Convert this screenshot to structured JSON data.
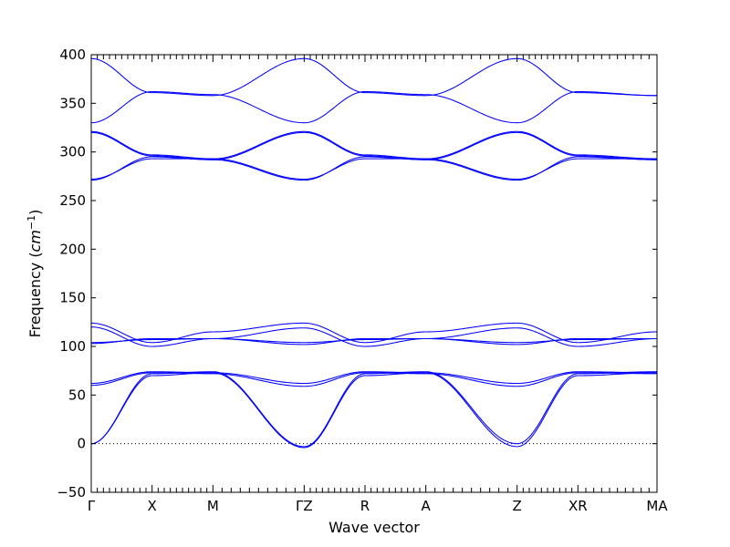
{
  "chart_data": {
    "type": "line",
    "title": "",
    "xlabel": "Wave vector",
    "ylabel": "Frequency (cm⁻¹)",
    "ylabel_parts": {
      "text": "Frequency (",
      "unit": "cm",
      "exp": "−1",
      "close": ")"
    },
    "ylim": [
      -50,
      400
    ],
    "yticks": [
      -50,
      0,
      50,
      100,
      150,
      200,
      250,
      300,
      350,
      400
    ],
    "zero_line": true,
    "grid": false,
    "line_color": "#0000ff",
    "high_symmetry_points": [
      {
        "label": "Γ",
        "x": 0
      },
      {
        "label": "X",
        "x": 1
      },
      {
        "label": "M",
        "x": 2
      },
      {
        "label": "ΓZ",
        "x": 3.5
      },
      {
        "label": "R",
        "x": 4.5
      },
      {
        "label": "A",
        "x": 5.5
      },
      {
        "label": "Z",
        "x": 7
      },
      {
        "label": "XR",
        "x": 8
      },
      {
        "label": "MA",
        "x": 9.3
      }
    ],
    "xlim": [
      0,
      9.3
    ],
    "segments": [
      {
        "x0": 0,
        "x1": 1,
        "bands": [
          [
            0,
            72
          ],
          [
            0,
            70
          ],
          [
            62,
            74
          ],
          [
            60,
            73
          ],
          [
            104,
            107
          ],
          [
            103,
            108
          ],
          [
            120,
            100
          ],
          [
            124,
            104
          ],
          [
            272,
            293
          ],
          [
            271,
            295
          ],
          [
            321,
            297
          ],
          [
            320,
            296
          ],
          [
            330,
            362
          ],
          [
            396,
            361
          ]
        ]
      },
      {
        "x0": 1,
        "x1": 2,
        "bands": [
          [
            72,
            74
          ],
          [
            70,
            73
          ],
          [
            74,
            73
          ],
          [
            73,
            72
          ],
          [
            107,
            108
          ],
          [
            108,
            108
          ],
          [
            100,
            108
          ],
          [
            104,
            115
          ],
          [
            293,
            293
          ],
          [
            295,
            292
          ],
          [
            297,
            293
          ],
          [
            296,
            292
          ],
          [
            362,
            359
          ],
          [
            361,
            358
          ]
        ]
      },
      {
        "x0": 2,
        "x1": 3.5,
        "bands": [
          [
            74,
            -3
          ],
          [
            73,
            -4
          ],
          [
            73,
            62
          ],
          [
            72,
            59
          ],
          [
            108,
            104
          ],
          [
            108,
            102
          ],
          [
            108,
            119
          ],
          [
            115,
            124
          ],
          [
            293,
            272
          ],
          [
            292,
            271
          ],
          [
            293,
            321
          ],
          [
            292,
            320
          ],
          [
            359,
            330
          ],
          [
            358,
            396
          ]
        ]
      },
      {
        "x0": 3.5,
        "x1": 4.5,
        "bands": [
          [
            -3,
            72
          ],
          [
            -4,
            70
          ],
          [
            62,
            74
          ],
          [
            59,
            73
          ],
          [
            104,
            107
          ],
          [
            102,
            108
          ],
          [
            119,
            100
          ],
          [
            124,
            104
          ],
          [
            272,
            293
          ],
          [
            271,
            295
          ],
          [
            321,
            297
          ],
          [
            320,
            296
          ],
          [
            330,
            362
          ],
          [
            396,
            361
          ]
        ]
      },
      {
        "x0": 4.5,
        "x1": 5.5,
        "bands": [
          [
            72,
            74
          ],
          [
            70,
            73
          ],
          [
            74,
            73
          ],
          [
            73,
            72
          ],
          [
            107,
            108
          ],
          [
            108,
            108
          ],
          [
            100,
            108
          ],
          [
            104,
            115
          ],
          [
            293,
            293
          ],
          [
            295,
            292
          ],
          [
            297,
            293
          ],
          [
            296,
            292
          ],
          [
            362,
            359
          ],
          [
            361,
            358
          ]
        ]
      },
      {
        "x0": 5.5,
        "x1": 7,
        "bands": [
          [
            74,
            0
          ],
          [
            73,
            -3
          ],
          [
            73,
            62
          ],
          [
            72,
            59
          ],
          [
            108,
            104
          ],
          [
            108,
            102
          ],
          [
            108,
            119
          ],
          [
            115,
            124
          ],
          [
            293,
            272
          ],
          [
            292,
            271
          ],
          [
            293,
            321
          ],
          [
            292,
            320
          ],
          [
            359,
            330
          ],
          [
            358,
            396
          ]
        ]
      },
      {
        "x0": 7,
        "x1": 8,
        "bands": [
          [
            0,
            72
          ],
          [
            -3,
            70
          ],
          [
            62,
            74
          ],
          [
            59,
            73
          ],
          [
            104,
            107
          ],
          [
            102,
            108
          ],
          [
            119,
            100
          ],
          [
            124,
            104
          ],
          [
            272,
            293
          ],
          [
            271,
            295
          ],
          [
            321,
            297
          ],
          [
            320,
            296
          ],
          [
            330,
            362
          ],
          [
            396,
            361
          ]
        ]
      },
      {
        "x0": 8,
        "x1": 9.3,
        "bands": [
          [
            72,
            74
          ],
          [
            70,
            73
          ],
          [
            74,
            73
          ],
          [
            73,
            72
          ],
          [
            107,
            108
          ],
          [
            108,
            108
          ],
          [
            100,
            108
          ],
          [
            104,
            115
          ],
          [
            293,
            293
          ],
          [
            295,
            292
          ],
          [
            297,
            293
          ],
          [
            296,
            292
          ],
          [
            362,
            358
          ],
          [
            361,
            358
          ]
        ]
      }
    ]
  }
}
